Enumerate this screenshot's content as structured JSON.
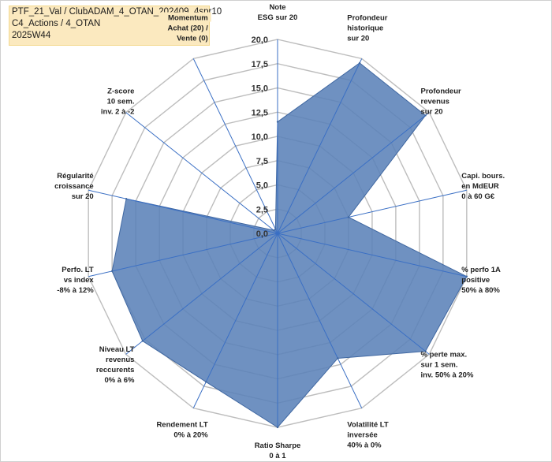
{
  "title_lines": [
    "PTF_21_Val / ClubADAM_4_OTAN_202409_4spr10",
    "C4_Actions / 4_OTAN",
    "2025W44"
  ],
  "colors": {
    "fill": "#5b82b8",
    "stroke": "#3f67a1",
    "grid": "#bdbdbd",
    "axis": "#3a6fc4",
    "title_bg": "#fbe9bf"
  },
  "chart_data": {
    "type": "radar",
    "rmax": 20,
    "ticks": [
      "0,0",
      "2,5",
      "5,0",
      "7,5",
      "10,0",
      "12,5",
      "15,0",
      "17,5",
      "20,0"
    ],
    "axes": [
      {
        "lines": [
          "Note",
          "ESG sur 20"
        ]
      },
      {
        "lines": [
          "Profondeur",
          "historique",
          "sur 20"
        ]
      },
      {
        "lines": [
          "Profondeur",
          "revenus",
          "sur 20"
        ]
      },
      {
        "lines": [
          "Capi. bours.",
          "en MdEUR",
          "0 à 60 G€"
        ]
      },
      {
        "lines": [
          "% perfo 1A",
          "positive",
          "50% à 80%"
        ]
      },
      {
        "lines": [
          "% perte max.",
          "sur 1 sem.",
          "inv. 50% à 20%"
        ]
      },
      {
        "lines": [
          "Volatilité LT",
          "inversée",
          "40% à 0%"
        ]
      },
      {
        "lines": [
          "Ratio Sharpe",
          "0 à 1"
        ]
      },
      {
        "lines": [
          "Rendement LT",
          "0% à 20%"
        ]
      },
      {
        "lines": [
          "Niveau LT",
          "revenus",
          "reccurents",
          "0% à 6%"
        ]
      },
      {
        "lines": [
          "Perfo. LT",
          "vs index",
          "-8% à 12%"
        ]
      },
      {
        "lines": [
          "Régularité",
          "croissance",
          "sur 20"
        ]
      },
      {
        "lines": [
          "Z-score",
          "10 sem.",
          "inv. 2 à -2"
        ]
      },
      {
        "lines": [
          "Momentum",
          "Achat (20) /",
          "Vente (0)"
        ]
      }
    ],
    "values": [
      11.5,
      19.5,
      19.5,
      7.5,
      20,
      19.5,
      14.3,
      20,
      17.0,
      17.8,
      17.5,
      16.0,
      0.5,
      0.5
    ]
  }
}
